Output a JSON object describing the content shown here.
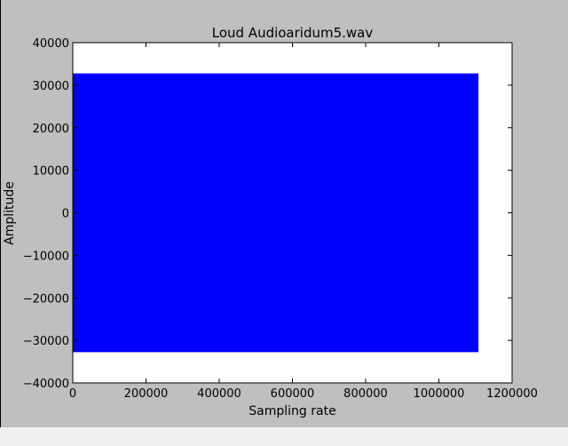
{
  "window": {
    "background": "#bfbfbf",
    "statusbar_background": "#f0f0f0"
  },
  "chart_data": {
    "type": "area",
    "title": "Loud Audioaridum5.wav",
    "xlabel": "Sampling rate",
    "ylabel": "Amplitude",
    "xlim": [
      0,
      1200000
    ],
    "ylim": [
      -40000,
      40000
    ],
    "xticks": [
      0,
      200000,
      400000,
      600000,
      800000,
      1000000,
      1200000
    ],
    "xtick_labels": [
      "0",
      "200000",
      "400000",
      "600000",
      "800000",
      "1000000",
      "1200000"
    ],
    "yticks": [
      40000,
      30000,
      20000,
      10000,
      0,
      -10000,
      -20000,
      -30000,
      -40000
    ],
    "ytick_labels": [
      "40000",
      "30000",
      "20000",
      "10000",
      "0",
      "−10000",
      "−20000",
      "−30000",
      "−40000"
    ],
    "grid": false,
    "series": [
      {
        "color": "#0000ff",
        "x_range": [
          0,
          1108000
        ],
        "amplitude_envelope": [
          -32768,
          32767
        ]
      }
    ],
    "plot_background": "#ffffff"
  }
}
